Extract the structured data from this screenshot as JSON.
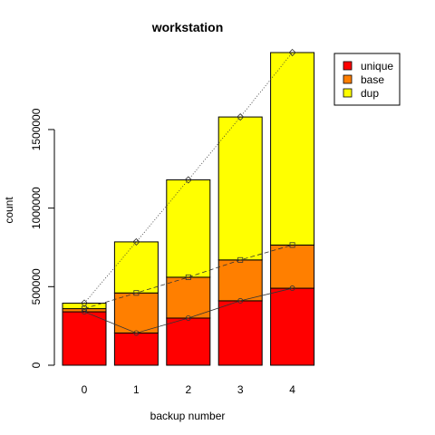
{
  "chart_data": {
    "type": "bar",
    "stacked": true,
    "title": "workstation",
    "xlabel": "backup number",
    "ylabel": "count",
    "categories": [
      "0",
      "1",
      "2",
      "3",
      "4"
    ],
    "ylim": [
      0,
      2000000
    ],
    "yticks": [
      0,
      500000,
      1000000,
      1500000
    ],
    "ytick_labels": [
      "0",
      "500000",
      "1000000",
      "1500000"
    ],
    "grid": false,
    "legend_position": "top-right",
    "series": [
      {
        "name": "unique",
        "color": "#ff0000",
        "values": [
          340000,
          205000,
          300000,
          410000,
          490000
        ]
      },
      {
        "name": "base",
        "color": "#ff7f00",
        "values": [
          20000,
          255000,
          260000,
          260000,
          275000
        ]
      },
      {
        "name": "dup",
        "color": "#ffff00",
        "values": [
          35000,
          325000,
          620000,
          910000,
          1225000
        ]
      }
    ],
    "overlay_lines": [
      {
        "series": "unique",
        "marker": "circle",
        "line_style": "solid",
        "values": [
          340000,
          205000,
          300000,
          410000,
          490000
        ]
      },
      {
        "series": "base",
        "marker": "square",
        "line_style": "dashed",
        "values": [
          360000,
          460000,
          560000,
          670000,
          765000
        ]
      },
      {
        "series": "dup",
        "marker": "diamond",
        "line_style": "dotted",
        "values": [
          395000,
          785000,
          1180000,
          1580000,
          1990000
        ]
      }
    ]
  }
}
